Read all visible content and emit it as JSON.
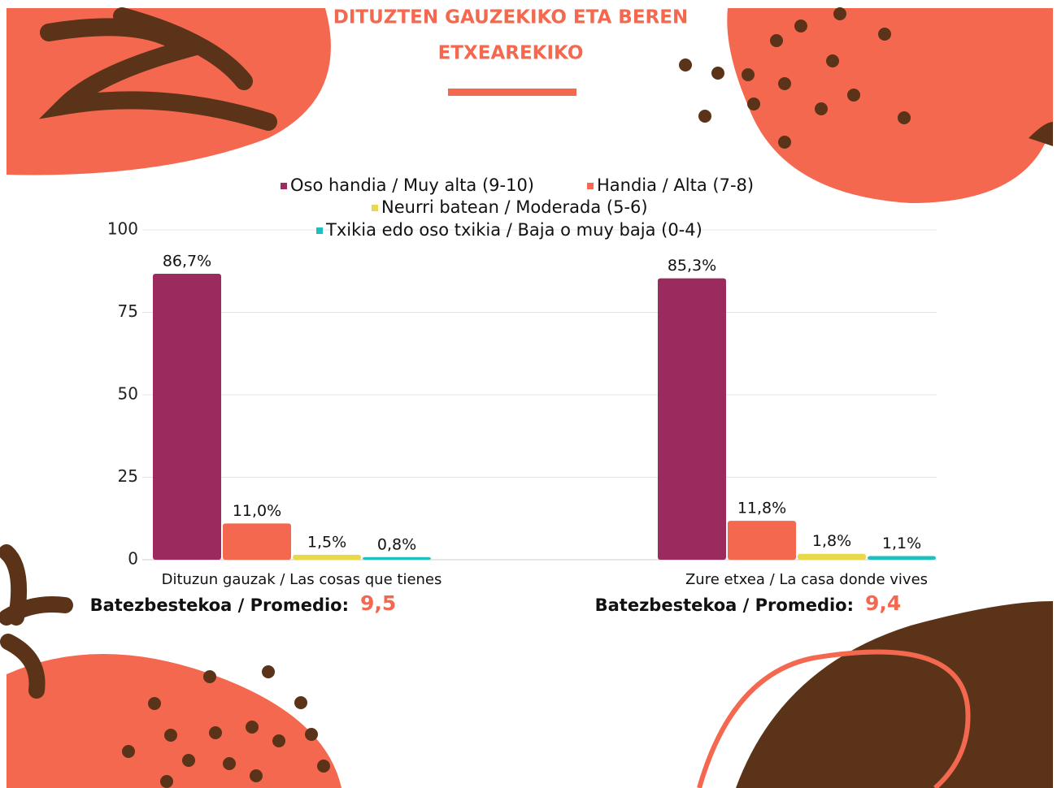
{
  "chart_data": {
    "type": "bar",
    "title_lines": [
      "DITUZTEN GAUZEKIKO ETA BEREN",
      "ETXEAREKIKO"
    ],
    "categories": [
      "Dituzun gauzak / Las cosas que tienes",
      "Zure etxea / La casa donde vives"
    ],
    "series": [
      {
        "name": "Oso handia / Muy alta (9-10)",
        "color": "#9b2a5e",
        "values": [
          86.7,
          85.3
        ],
        "value_labels": [
          "86,7%",
          "85,3%"
        ]
      },
      {
        "name": "Handia / Alta (7-8)",
        "color": "#f4684f",
        "values": [
          11.0,
          11.8
        ],
        "value_labels": [
          "11,0%",
          "11,8%"
        ]
      },
      {
        "name": "Neurri batean / Moderada (5-6)",
        "color": "#e8d84a",
        "values": [
          1.5,
          1.8
        ],
        "value_labels": [
          "1,5%",
          "1,8%"
        ]
      },
      {
        "name": "Txikia edo oso txikia / Baja o muy baja (0-4)",
        "color": "#1fbfbf",
        "values": [
          0.8,
          1.1
        ],
        "value_labels": [
          "0,8%",
          "1,1%"
        ]
      }
    ],
    "ylim": [
      0,
      100
    ],
    "yticks": [
      0,
      25,
      50,
      75,
      100
    ],
    "grid": true,
    "averages": {
      "label": "Batezbestekoa / Promedio:",
      "values": [
        9.5,
        9.4
      ],
      "value_labels": [
        "9,5",
        "9,4"
      ]
    }
  }
}
